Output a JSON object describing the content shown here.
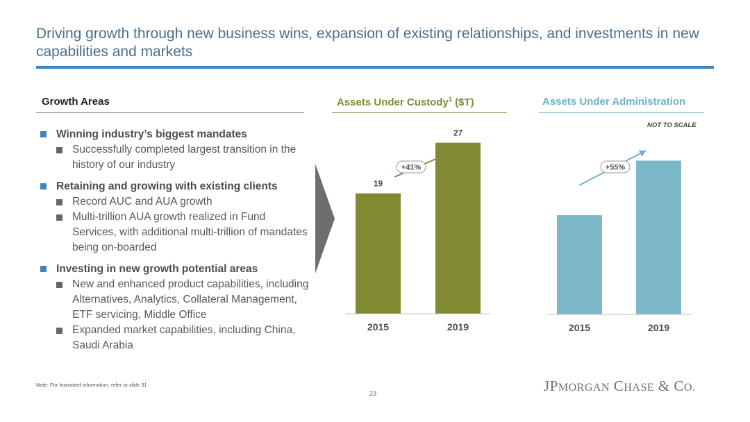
{
  "title": "Driving growth through new business wins, expansion of existing relationships, and investments in new capabilities and markets",
  "growth_areas": {
    "heading": "Growth Areas",
    "items": [
      {
        "label": "Winning industry’s biggest mandates",
        "subs": [
          "Successfully completed largest transition in the history of our industry"
        ]
      },
      {
        "label": "Retaining and growing with existing clients",
        "subs": [
          "Record AUC and AUA growth",
          "Multi-trillion AUA growth realized in Fund Services, with additional multi-trillion of mandates being on-boarded"
        ]
      },
      {
        "label": "Investing in new growth potential areas",
        "subs": [
          "New and enhanced product capabilities, including Alternatives, Analytics, Collateral Management, ETF servicing, Middle Office",
          "Expanded market capabilities, including China, Saudi Arabia"
        ]
      }
    ]
  },
  "chart_data": [
    {
      "type": "bar",
      "title_main": "Assets Under Custody",
      "title_sup": "1",
      "title_unit": "($T)",
      "categories": [
        "2015",
        "2019"
      ],
      "values": [
        19,
        27
      ],
      "value_labels": [
        "19",
        "27"
      ],
      "growth_label": "+41%",
      "color": "#7f8a33",
      "arrow_color": "#7f8a33",
      "ylim": [
        0,
        32
      ]
    },
    {
      "type": "bar",
      "title_main": "Assets Under Administration",
      "note": "NOT TO SCALE",
      "categories": [
        "2015",
        "2019"
      ],
      "values": [
        1,
        1.55
      ],
      "value_labels": [
        "",
        ""
      ],
      "growth_label": "+55%",
      "color": "#7db8c8",
      "arrow_color": "#6fb1c7",
      "ylim": [
        0,
        1.7
      ]
    }
  ],
  "footer": {
    "note": "Note: For footnoted information, refer to slide 31",
    "page": "23",
    "logo": "JPMorgan Chase & Co."
  }
}
